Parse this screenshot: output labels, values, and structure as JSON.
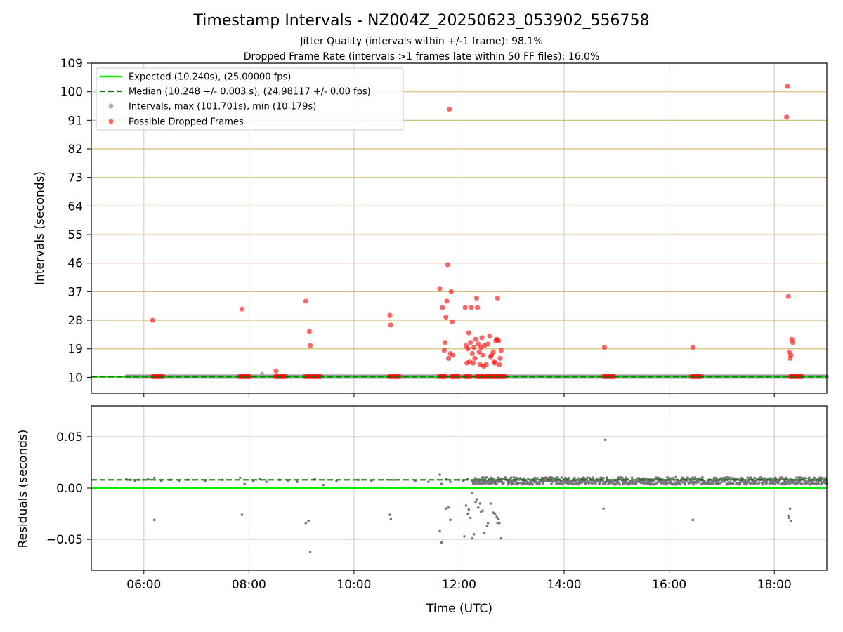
{
  "title": "Timestamp Intervals - NZ004Z_20250623_053902_556758",
  "subtitle_1": "Jitter Quality (intervals within +/-1 frame): 98.1%",
  "subtitle_2": "Dropped Frame Rate (intervals >1 frames late within 50 FF files): 16.0%",
  "colors": {
    "expected": "#00ee00",
    "median": "#007700",
    "intervals": "#999999",
    "dropped": "#ff0000",
    "residual_points": "#777777",
    "hgrid_top": "#d4be78",
    "grid": "#c8c8c8"
  },
  "chart_data": [
    {
      "type": "scatter",
      "panel": "top",
      "ylabel": "Intervals (seconds)",
      "xlim": [
        "05:00",
        "19:00"
      ],
      "ylim": [
        5,
        109
      ],
      "yticks": [
        10,
        19,
        28,
        37,
        46,
        55,
        64,
        73,
        82,
        91,
        100,
        109
      ],
      "xticks": [
        "06:00",
        "08:00",
        "10:00",
        "12:00",
        "14:00",
        "16:00",
        "18:00"
      ],
      "grid": true,
      "legend_position": "top-left",
      "legend": [
        "Expected (10.240s), (25.00000 fps)",
        "Median (10.248 +/- 0.003 s), (24.98117 +/- 0.00 fps)",
        "Intervals, max (101.701s), min (10.179s)",
        "Possible Dropped Frames"
      ],
      "expected_value": 10.24,
      "median_value": 10.248,
      "intervals_series": {
        "name": "Intervals, max (101.701s), min (10.179s)",
        "x_range": [
          "05:40",
          "19:00"
        ],
        "y": 10.24,
        "extra_points": [
          [
            "08:15",
            11.0
          ]
        ]
      },
      "dropped_series": {
        "name": "Possible Dropped Frames",
        "points": [
          [
            "06:10",
            28.0
          ],
          [
            "07:52",
            31.5
          ],
          [
            "08:31",
            12.0
          ],
          [
            "09:05",
            34.0
          ],
          [
            "09:09",
            24.5
          ],
          [
            "09:10",
            20.0
          ],
          [
            "10:41",
            29.5
          ],
          [
            "10:42",
            26.5
          ],
          [
            "11:38",
            38.0
          ],
          [
            "11:41",
            32.0
          ],
          [
            "11:43",
            18.5
          ],
          [
            "11:44",
            21.0
          ],
          [
            "11:45",
            29.0
          ],
          [
            "11:46",
            34.0
          ],
          [
            "11:47",
            45.5
          ],
          [
            "11:48",
            16.0
          ],
          [
            "11:49",
            94.5
          ],
          [
            "11:50",
            17.5
          ],
          [
            "11:51",
            37.0
          ],
          [
            "11:52",
            27.5
          ],
          [
            "11:53",
            17.0
          ],
          [
            "12:07",
            32.0
          ],
          [
            "12:08",
            20.0
          ],
          [
            "12:09",
            14.5
          ],
          [
            "12:10",
            19.0
          ],
          [
            "12:11",
            24.0
          ],
          [
            "12:12",
            15.0
          ],
          [
            "12:13",
            21.0
          ],
          [
            "12:14",
            32.0
          ],
          [
            "12:15",
            17.5
          ],
          [
            "12:16",
            14.5
          ],
          [
            "12:17",
            19.5
          ],
          [
            "12:18",
            16.0
          ],
          [
            "12:19",
            22.0
          ],
          [
            "12:20",
            35.0
          ],
          [
            "12:21",
            32.0
          ],
          [
            "12:22",
            20.5
          ],
          [
            "12:23",
            18.0
          ],
          [
            "12:24",
            14.0
          ],
          [
            "12:25",
            19.5
          ],
          [
            "12:26",
            22.5
          ],
          [
            "12:27",
            17.0
          ],
          [
            "12:28",
            13.5
          ],
          [
            "12:29",
            20.0
          ],
          [
            "12:31",
            14.0
          ],
          [
            "12:33",
            20.5
          ],
          [
            "12:35",
            23.0
          ],
          [
            "12:36",
            16.5
          ],
          [
            "12:37",
            17.0
          ],
          [
            "12:39",
            18.0
          ],
          [
            "12:40",
            15.0
          ],
          [
            "12:41",
            14.5
          ],
          [
            "12:42",
            21.5
          ],
          [
            "12:43",
            22.0
          ],
          [
            "12:44",
            35.0
          ],
          [
            "12:45",
            21.5
          ],
          [
            "12:46",
            14.0
          ],
          [
            "12:47",
            16.0
          ],
          [
            "12:48",
            18.5
          ],
          [
            "14:46",
            19.5
          ],
          [
            "16:27",
            19.5
          ],
          [
            "18:14",
            92.0
          ],
          [
            "18:15",
            101.7
          ],
          [
            "18:16",
            35.5
          ],
          [
            "18:17",
            18.0
          ],
          [
            "18:18",
            16.0
          ],
          [
            "18:19",
            17.0
          ],
          [
            "18:20",
            22.0
          ],
          [
            "18:21",
            21.0
          ]
        ],
        "baseline_clusters": [
          [
            "06:10",
            "06:22"
          ],
          [
            "07:49",
            "08:01"
          ],
          [
            "08:30",
            "08:42"
          ],
          [
            "09:04",
            "09:23"
          ],
          [
            "10:40",
            "10:52"
          ],
          [
            "11:37",
            "11:45"
          ],
          [
            "11:51",
            "12:01"
          ],
          [
            "12:07",
            "12:14"
          ],
          [
            "12:20",
            "12:53"
          ],
          [
            "14:45",
            "14:57"
          ],
          [
            "16:25",
            "16:37"
          ],
          [
            "18:18",
            "18:32"
          ]
        ]
      }
    },
    {
      "type": "scatter",
      "panel": "bottom",
      "xlabel": "Time (UTC)",
      "ylabel": "Residuals (seconds)",
      "xlim": [
        "05:00",
        "19:00"
      ],
      "ylim": [
        -0.08,
        0.08
      ],
      "yticks": [
        -0.05,
        0.0,
        0.05
      ],
      "ytick_labels": [
        "−0.05",
        "0.00",
        "0.05"
      ],
      "xticks": [
        "06:00",
        "08:00",
        "10:00",
        "12:00",
        "14:00",
        "16:00",
        "18:00"
      ],
      "grid": true,
      "expected_value": 0.0,
      "median_value": 0.008,
      "residual_band": {
        "center": 0.007,
        "spread": 0.0035,
        "dense_range": [
          "12:15",
          "19:00"
        ]
      },
      "sparse_band_points": [
        [
          "05:40",
          0.009
        ],
        [
          "05:45",
          0.008
        ],
        [
          "05:50",
          0.007
        ],
        [
          "05:55",
          0.008
        ],
        [
          "06:05",
          0.009
        ],
        [
          "06:12",
          0.01
        ],
        [
          "06:20",
          0.007
        ],
        [
          "06:30",
          0.008
        ],
        [
          "06:40",
          0.007
        ],
        [
          "06:50",
          0.008
        ],
        [
          "07:10",
          0.007
        ],
        [
          "07:30",
          0.008
        ],
        [
          "07:50",
          0.01
        ],
        [
          "07:55",
          0.004
        ],
        [
          "08:05",
          0.007
        ],
        [
          "08:12",
          0.009
        ],
        [
          "08:20",
          0.006
        ],
        [
          "08:35",
          0.008
        ],
        [
          "08:45",
          0.007
        ],
        [
          "08:55",
          0.006
        ],
        [
          "09:15",
          0.009
        ],
        [
          "09:25",
          0.003
        ],
        [
          "09:40",
          0.007
        ],
        [
          "10:05",
          0.008
        ],
        [
          "10:20",
          0.007
        ],
        [
          "10:45",
          0.008
        ],
        [
          "11:10",
          0.007
        ],
        [
          "11:25",
          0.006
        ],
        [
          "11:38",
          0.013
        ],
        [
          "11:40",
          0.004
        ],
        [
          "11:45",
          0.009
        ],
        [
          "11:50",
          0.006
        ],
        [
          "12:00",
          0.008
        ],
        [
          "12:05",
          0.007
        ],
        [
          "12:10",
          0.009
        ]
      ],
      "outliers": [
        [
          "06:12",
          -0.031
        ],
        [
          "07:52",
          -0.026
        ],
        [
          "09:05",
          -0.034
        ],
        [
          "09:08",
          -0.032
        ],
        [
          "09:10",
          -0.062
        ],
        [
          "10:41",
          -0.026
        ],
        [
          "10:42",
          -0.03
        ],
        [
          "11:38",
          -0.042
        ],
        [
          "11:40",
          -0.053
        ],
        [
          "11:45",
          -0.02
        ],
        [
          "11:48",
          -0.019
        ],
        [
          "11:50",
          -0.031
        ],
        [
          "12:06",
          -0.047
        ],
        [
          "12:08",
          -0.017
        ],
        [
          "12:10",
          -0.025
        ],
        [
          "12:11",
          -0.021
        ],
        [
          "12:13",
          -0.029
        ],
        [
          "12:15",
          -0.005
        ],
        [
          "12:15",
          -0.049
        ],
        [
          "12:17",
          -0.045
        ],
        [
          "12:19",
          -0.014
        ],
        [
          "12:20",
          -0.011
        ],
        [
          "12:22",
          -0.019
        ],
        [
          "12:24",
          -0.015
        ],
        [
          "12:25",
          -0.023
        ],
        [
          "12:27",
          -0.022
        ],
        [
          "12:29",
          -0.044
        ],
        [
          "12:32",
          -0.037
        ],
        [
          "12:33",
          -0.034
        ],
        [
          "12:36",
          -0.015
        ],
        [
          "12:39",
          -0.024
        ],
        [
          "12:41",
          -0.025
        ],
        [
          "12:43",
          -0.028
        ],
        [
          "12:44",
          -0.034
        ],
        [
          "12:45",
          -0.03
        ],
        [
          "12:46",
          -0.034
        ],
        [
          "12:48",
          -0.049
        ],
        [
          "14:45",
          -0.02
        ],
        [
          "14:47",
          0.047
        ],
        [
          "16:27",
          -0.031
        ],
        [
          "18:16",
          -0.027
        ],
        [
          "18:17",
          -0.029
        ],
        [
          "18:18",
          -0.02
        ],
        [
          "18:19",
          -0.032
        ]
      ]
    }
  ]
}
